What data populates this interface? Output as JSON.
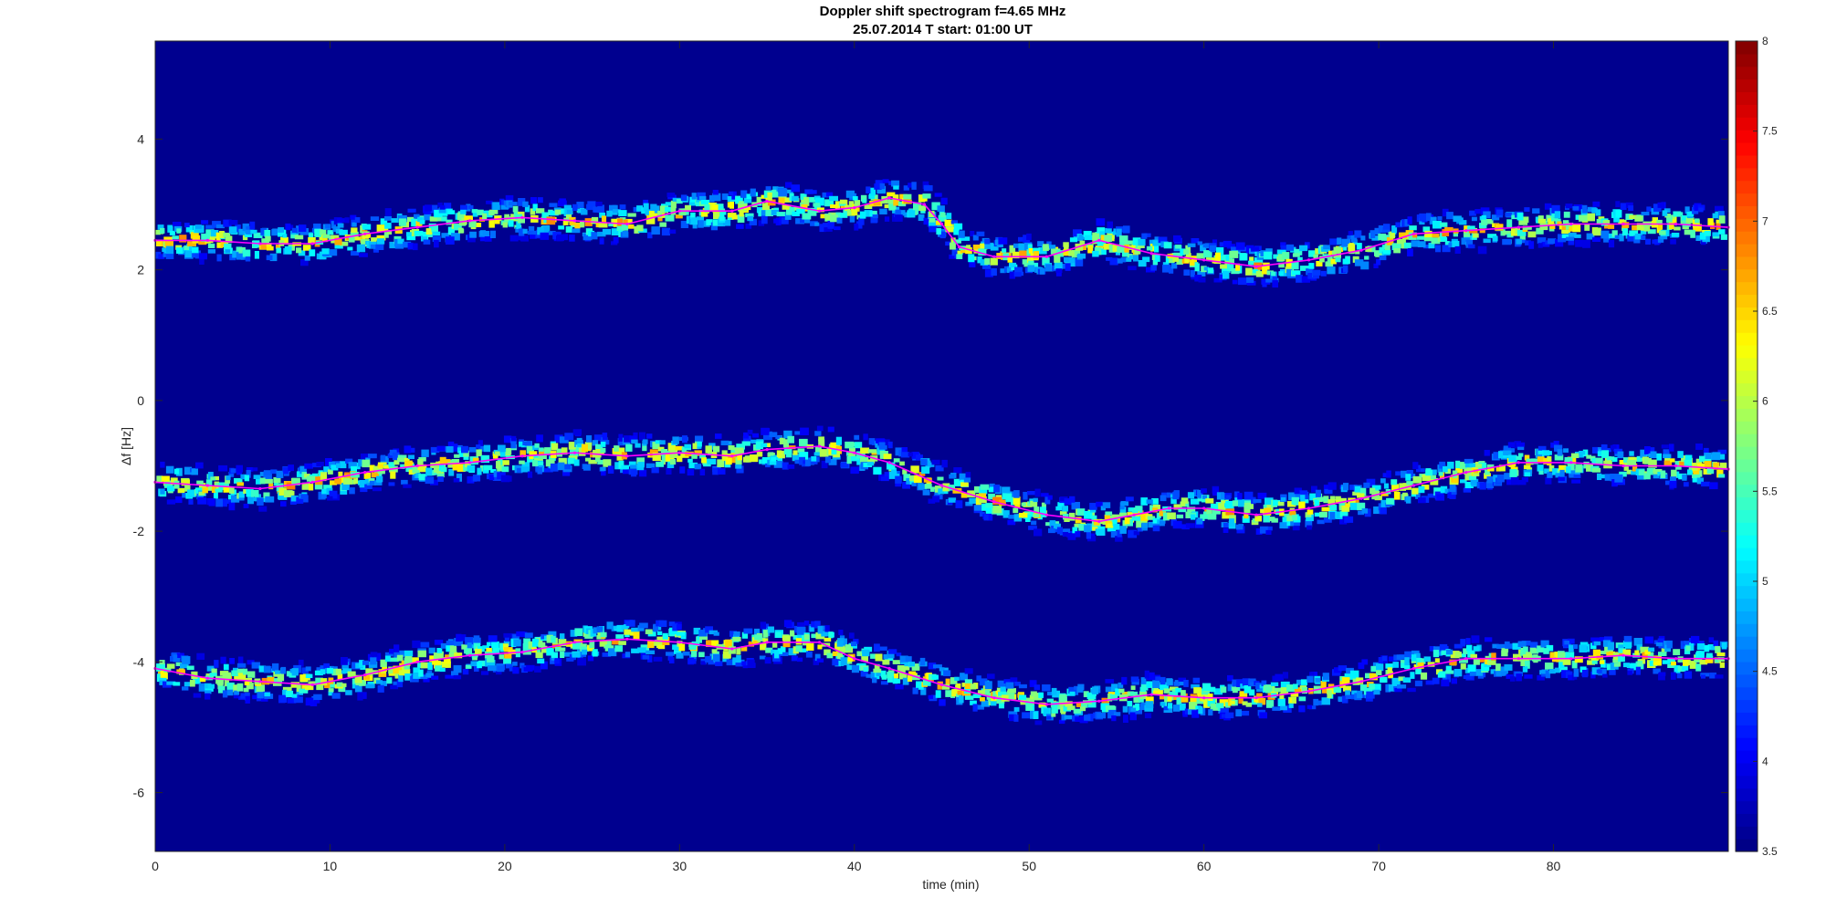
{
  "chart_data": {
    "type": "heatmap",
    "title": "Doppler shift spectrogram f=4.65 MHz",
    "subtitle": "25.07.2014   T start: 01:00 UT",
    "xlabel": "time (min)",
    "ylabel": "Δf [Hz]",
    "xlim": [
      0,
      90
    ],
    "ylim": [
      -6.9,
      5.5
    ],
    "xticks": [
      0,
      10,
      20,
      30,
      40,
      50,
      60,
      70,
      80
    ],
    "yticks": [
      4,
      2,
      0,
      -2,
      -4,
      -6
    ],
    "colorbar": {
      "colormap": "jet",
      "range": [
        3.5,
        8
      ],
      "ticks": [
        3.5,
        4,
        4.5,
        5,
        5.5,
        6,
        6.5,
        7,
        7.5,
        8
      ]
    },
    "background_color": "#00008F",
    "trace_color": "#FF00FF",
    "series": [
      {
        "x": [
          0,
          3,
          6,
          9,
          12,
          15,
          18,
          21,
          24,
          27,
          30,
          33,
          35,
          38,
          40,
          42,
          44,
          45,
          46,
          48,
          51,
          54,
          57,
          60,
          63,
          66,
          69,
          72,
          75,
          78,
          81,
          84,
          87,
          90
        ],
        "values": [
          2.45,
          2.45,
          2.4,
          2.4,
          2.55,
          2.65,
          2.75,
          2.8,
          2.75,
          2.7,
          2.9,
          2.9,
          3.05,
          2.9,
          2.95,
          3.1,
          3.0,
          2.7,
          2.35,
          2.2,
          2.2,
          2.45,
          2.25,
          2.15,
          2.05,
          2.15,
          2.3,
          2.55,
          2.6,
          2.65,
          2.7,
          2.7,
          2.7,
          2.65
        ]
      },
      {
        "x": [
          0,
          3,
          6,
          9,
          12,
          15,
          18,
          21,
          24,
          27,
          30,
          33,
          35,
          38,
          40,
          42,
          45,
          48,
          51,
          54,
          56,
          58,
          60,
          63,
          66,
          69,
          72,
          75,
          78,
          81,
          84,
          87,
          90
        ],
        "values": [
          -1.25,
          -1.3,
          -1.35,
          -1.25,
          -1.1,
          -1.0,
          -0.95,
          -0.85,
          -0.8,
          -0.85,
          -0.8,
          -0.85,
          -0.75,
          -0.7,
          -0.8,
          -0.95,
          -1.3,
          -1.55,
          -1.75,
          -1.85,
          -1.75,
          -1.65,
          -1.65,
          -1.75,
          -1.65,
          -1.5,
          -1.3,
          -1.1,
          -0.95,
          -0.95,
          -1.0,
          -1.0,
          -1.05
        ]
      },
      {
        "x": [
          0,
          3,
          6,
          9,
          12,
          15,
          18,
          21,
          24,
          27,
          30,
          33,
          35,
          38,
          40,
          42,
          45,
          48,
          51,
          54,
          57,
          60,
          63,
          66,
          69,
          72,
          75,
          78,
          81,
          84,
          87,
          90
        ],
        "values": [
          -4.1,
          -4.25,
          -4.3,
          -4.35,
          -4.2,
          -4.0,
          -3.9,
          -3.85,
          -3.7,
          -3.65,
          -3.7,
          -3.8,
          -3.7,
          -3.7,
          -3.95,
          -4.1,
          -4.35,
          -4.55,
          -4.65,
          -4.6,
          -4.5,
          -4.55,
          -4.55,
          -4.45,
          -4.3,
          -4.1,
          -3.95,
          -3.95,
          -3.95,
          -3.9,
          -3.95,
          -3.95
        ]
      }
    ]
  }
}
